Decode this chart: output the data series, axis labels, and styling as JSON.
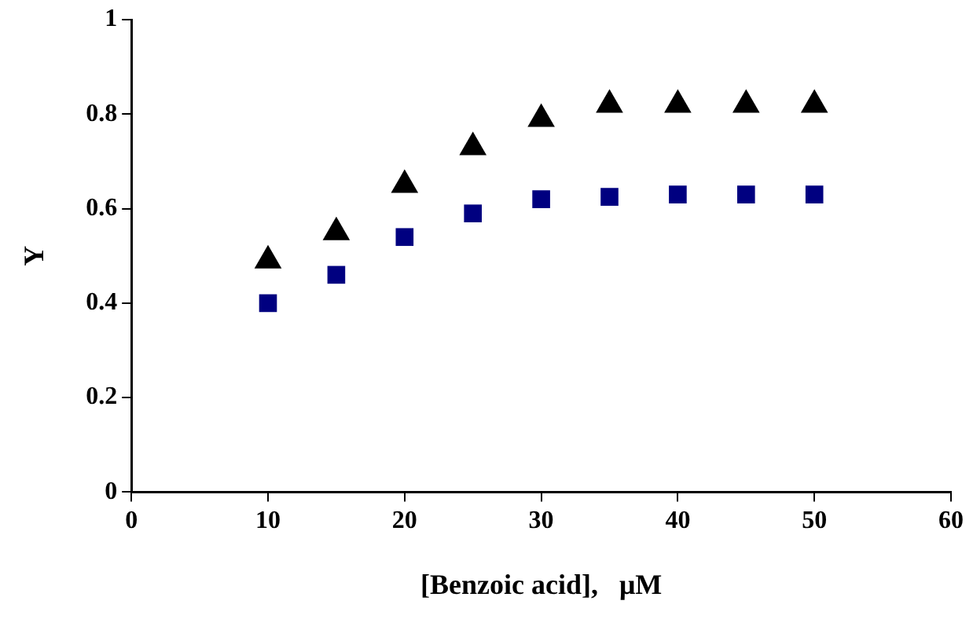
{
  "chart_data": {
    "type": "scatter",
    "xlabel": "[Benzoic acid],   μM",
    "ylabel": "Y",
    "x": [
      10,
      15,
      20,
      25,
      30,
      35,
      40,
      45,
      50
    ],
    "series": [
      {
        "color": "#000000",
        "marker": "triangle",
        "values": [
          0.49,
          0.55,
          0.65,
          0.73,
          0.79,
          0.82,
          0.82,
          0.82,
          0.82
        ]
      },
      {
        "color": "#000080",
        "marker": "square",
        "values": [
          0.4,
          0.46,
          0.54,
          0.59,
          0.62,
          0.625,
          0.63,
          0.63,
          0.63
        ]
      }
    ],
    "xlim": [
      0,
      60
    ],
    "xticks": [
      0,
      10,
      20,
      30,
      40,
      50,
      60
    ],
    "ylim": [
      0,
      1
    ],
    "yticks": [
      0,
      0.2,
      0.4,
      0.6,
      0.8,
      1
    ],
    "grid": false,
    "legend": false
  }
}
